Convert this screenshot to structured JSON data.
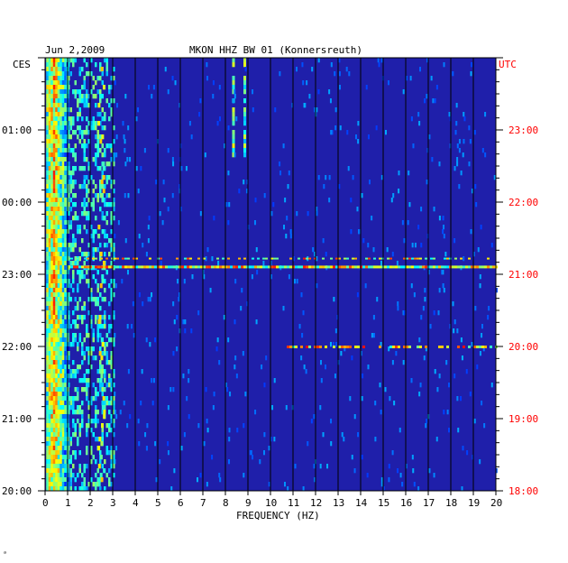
{
  "header": {
    "date": "Jun 2,2009",
    "station": "MKON HHZ BW 01 (Konnersreuth)"
  },
  "footer": {
    "mark": "ᵃ"
  },
  "colors": {
    "background": "#1f1faa",
    "grid": "#000000",
    "utc_text": "#ff0000",
    "local_text": "#000000"
  },
  "chart_data": {
    "type": "heatmap",
    "title": "MKON HHZ BW 01 (Konnersreuth)",
    "subtitle": "Jun 2,2009",
    "xlabel": "FREQUENCY (HZ)",
    "xlim": [
      0,
      20
    ],
    "x_ticks": [
      "0",
      "1",
      "2",
      "3",
      "4",
      "5",
      "6",
      "7",
      "8",
      "9",
      "10",
      "11",
      "12",
      "13",
      "14",
      "15",
      "16",
      "17",
      "18",
      "19",
      "20"
    ],
    "left_axis_label": "CES",
    "right_axis_label": "UTC",
    "left_ticks": [
      "01:00",
      "00:00",
      "23:00",
      "22:00",
      "21:00",
      "20:00"
    ],
    "right_ticks": [
      "23:00",
      "22:00",
      "21:00",
      "20:00",
      "19:00",
      "18:00"
    ],
    "time_range_utc": [
      "18:00",
      "24:00"
    ],
    "grid": true,
    "colormap": "jet (blue = low power, red = high power)",
    "features": [
      {
        "description": "persistent high energy band",
        "freq_hz": [
          0.1,
          0.8
        ]
      },
      {
        "description": "intermittent energy",
        "freq_hz": [
          2.2,
          2.6
        ]
      },
      {
        "description": "intermittent lines",
        "freq_hz": [
          8.2,
          8.9
        ],
        "utc": [
          "22:45",
          "24:00"
        ]
      },
      {
        "description": "broadband event",
        "utc": "21:07"
      },
      {
        "description": "narrow event",
        "utc": "20:00",
        "freq_hz": [
          10.5,
          20
        ]
      }
    ]
  }
}
